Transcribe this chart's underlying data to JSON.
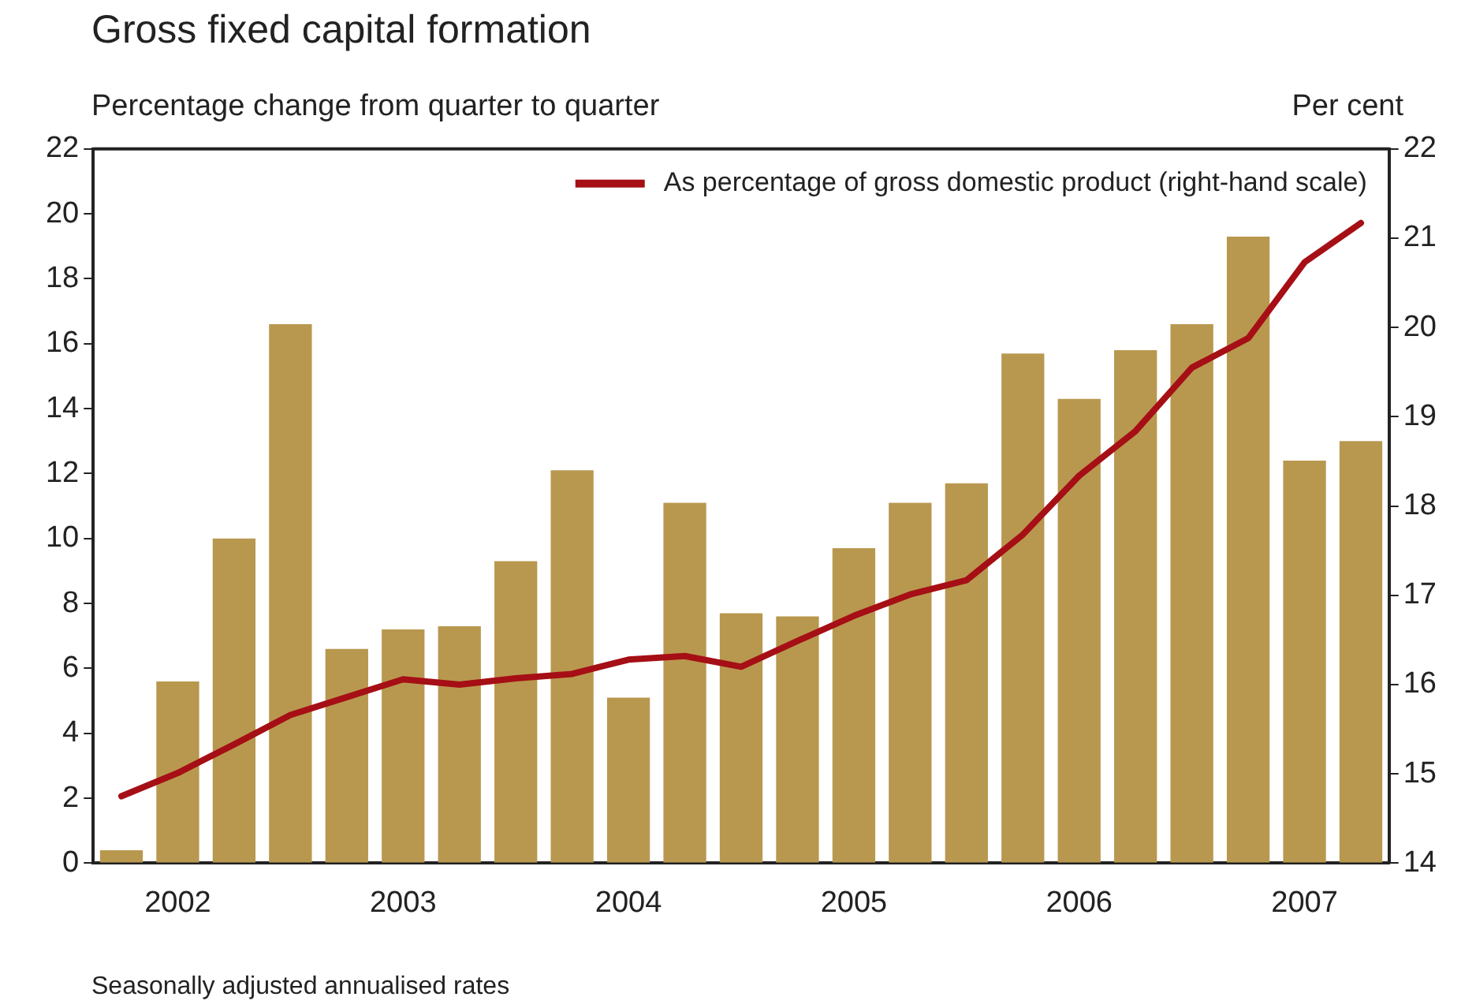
{
  "chart_data": {
    "type": "bar",
    "title": "Gross fixed capital formation",
    "ylabel": "Percentage change from quarter to quarter",
    "y2label": "Per cent",
    "annotations": [
      "Seasonally adjusted annualised rates"
    ],
    "categories": [
      null,
      "2002",
      null,
      null,
      null,
      "2003",
      null,
      null,
      null,
      "2004",
      null,
      null,
      null,
      "2005",
      null,
      null,
      null,
      "2006",
      null,
      null,
      null,
      "2007",
      null
    ],
    "series": [
      {
        "color": "#b8984f",
        "values": [
          0.4,
          5.6,
          10.0,
          16.6,
          6.6,
          7.2,
          7.3,
          9.3,
          12.1,
          5.1,
          11.1,
          7.7,
          7.6,
          9.7,
          11.1,
          11.7,
          15.7,
          14.3,
          15.8,
          16.6,
          19.3,
          12.4,
          13.0
        ]
      },
      {
        "type": "line",
        "axis": "y2",
        "name": "As percentage of gross domestic product (right-hand scale)",
        "color": "#a50f15",
        "values": [
          14.75,
          15.01,
          15.33,
          15.66,
          15.86,
          16.06,
          16.0,
          16.07,
          16.12,
          16.28,
          16.32,
          16.2,
          16.49,
          16.77,
          17.01,
          17.17,
          17.68,
          18.34,
          18.84,
          19.55,
          19.88,
          20.73,
          21.17
        ]
      }
    ],
    "ylim": [
      0,
      22
    ],
    "yticks": [
      0,
      2,
      4,
      6,
      8,
      10,
      12,
      14,
      16,
      18,
      20,
      22
    ],
    "y2lim": [
      14,
      22
    ],
    "y2ticks": [
      14,
      15,
      16,
      17,
      18,
      19,
      20,
      21,
      22
    ],
    "grid": false,
    "legend": "top right",
    "marker": "none"
  }
}
